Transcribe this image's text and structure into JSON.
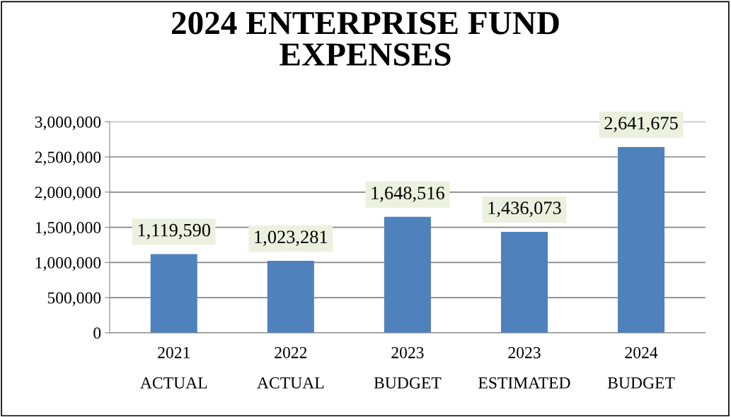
{
  "chart_data": {
    "type": "bar",
    "title": "2024 ENTERPRISE FUND\nEXPENSES",
    "categories": [
      "2021\n\nACTUAL",
      "2022\n\nACTUAL",
      "2023\n\nBUDGET",
      "2023\n\nESTIMATED",
      "2024\n\nBUDGET"
    ],
    "values": [
      1119590,
      1023281,
      1648516,
      1436073,
      2641675
    ],
    "color": "#4f81bd",
    "ylim": [
      0,
      3000000
    ],
    "yticks": [
      {
        "value": 0,
        "label": "0"
      },
      {
        "value": 500000,
        "label": "500,000"
      },
      {
        "value": 1000000,
        "label": "1,000,000"
      },
      {
        "value": 1500000,
        "label": "1,500,000"
      },
      {
        "value": 2000000,
        "label": "2,000,000"
      },
      {
        "value": 2500000,
        "label": "2,500,000"
      },
      {
        "value": 3000000,
        "label": "3,000,000"
      }
    ],
    "grid": "y",
    "value_labels": [
      "1,119,590",
      "1,023,281",
      "1,648,516",
      "1,436,073",
      "2,641,675"
    ]
  }
}
